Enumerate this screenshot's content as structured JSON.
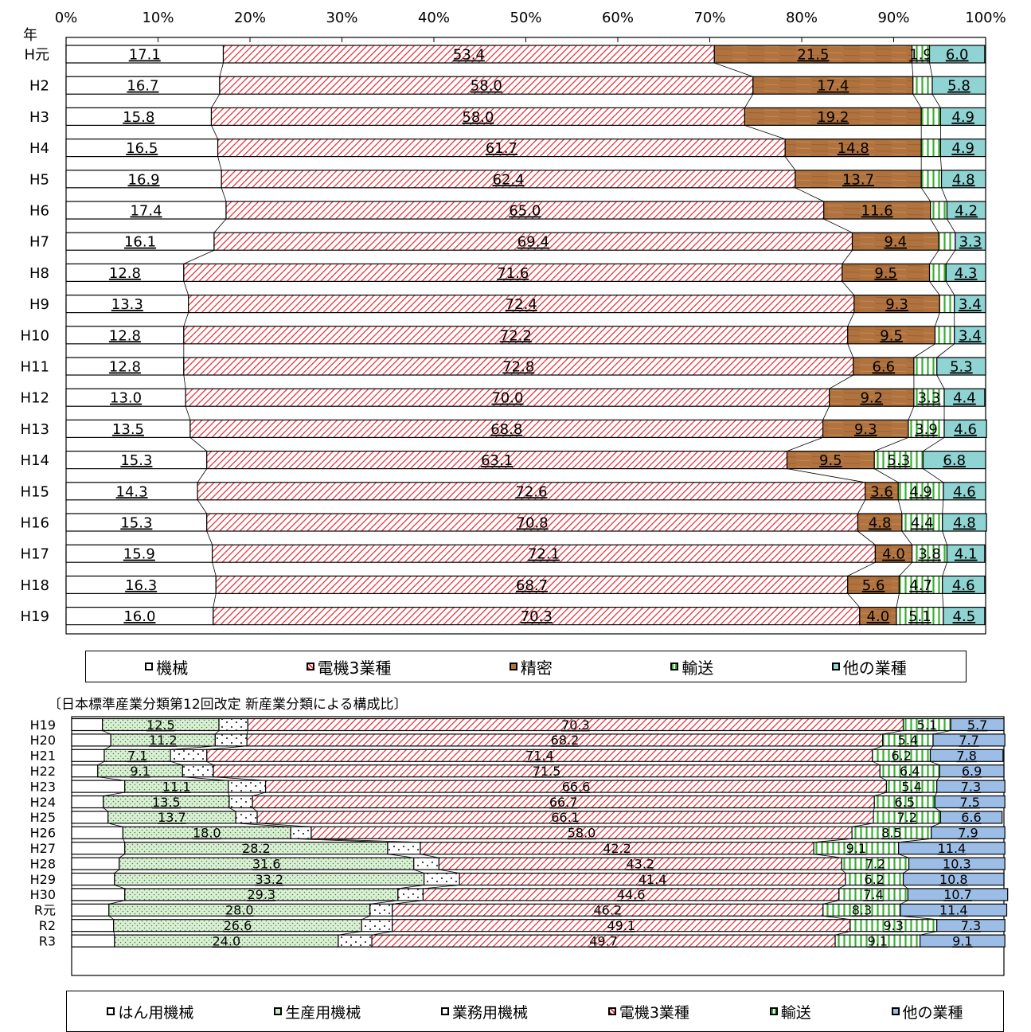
{
  "colors": {
    "machinery": "#ffffff",
    "electrical": "#e8252d",
    "precision": "#b0733f",
    "transport": "#35b030",
    "other_top": "#8fd3d3",
    "general": "#ffffff",
    "production": "#cfe9c7",
    "business": "#ffffff",
    "other_bottom": "#9bbde6"
  },
  "chart_data": [
    {
      "type": "bar",
      "orientation": "horizontal-stacked-100",
      "y_axis_title": "年",
      "xlim": [
        0,
        100
      ],
      "x_ticks": [
        "0%",
        "10%",
        "20%",
        "30%",
        "40%",
        "50%",
        "60%",
        "70%",
        "80%",
        "90%",
        "100%"
      ],
      "categories": [
        "H元",
        "H2",
        "H3",
        "H4",
        "H5",
        "H6",
        "H7",
        "H8",
        "H9",
        "H10",
        "H11",
        "H12",
        "H13",
        "H14",
        "H15",
        "H16",
        "H17",
        "H18",
        "H19"
      ],
      "series": [
        {
          "name": "機械",
          "values": [
            17.1,
            16.7,
            15.8,
            16.5,
            16.9,
            17.4,
            16.1,
            12.8,
            13.3,
            12.8,
            12.8,
            13.0,
            13.5,
            15.3,
            14.3,
            15.3,
            15.9,
            16.3,
            16.0
          ]
        },
        {
          "name": "電機3業種",
          "values": [
            53.4,
            58.0,
            58.0,
            61.7,
            62.4,
            65.0,
            69.4,
            71.6,
            72.4,
            72.2,
            72.8,
            70.0,
            68.8,
            63.1,
            72.6,
            70.8,
            72.1,
            68.7,
            70.3
          ]
        },
        {
          "name": "精密",
          "values": [
            21.5,
            17.4,
            19.2,
            14.8,
            13.7,
            11.6,
            9.4,
            9.5,
            9.3,
            9.5,
            6.6,
            9.2,
            9.3,
            9.5,
            3.6,
            4.8,
            4.0,
            5.6,
            4.0
          ]
        },
        {
          "name": "輸送",
          "values": [
            1.9,
            2.1,
            2.1,
            2.1,
            2.2,
            1.8,
            1.8,
            1.8,
            1.6,
            2.1,
            2.5,
            3.3,
            3.9,
            5.3,
            4.9,
            4.4,
            3.8,
            4.7,
            5.1
          ]
        },
        {
          "name": "他の業種",
          "values": [
            6.0,
            5.8,
            4.9,
            4.9,
            4.8,
            4.2,
            3.3,
            4.3,
            3.4,
            3.4,
            5.3,
            4.4,
            4.6,
            6.8,
            4.6,
            4.8,
            4.1,
            4.6,
            4.5
          ]
        }
      ],
      "data_labels": {
        "機械": [
          "17.1",
          "16.7",
          "15.8",
          "16.5",
          "16.9",
          "17.4",
          "16.1",
          "12.8",
          "13.3",
          "12.8",
          "12.8",
          "13.0",
          "13.5",
          "15.3",
          "14.3",
          "15.3",
          "15.9",
          "16.3",
          "16.0"
        ],
        "電機3業種": [
          "53.4",
          "58.0",
          "58.0",
          "61.7",
          "62.4",
          "65.0",
          "69.4",
          "71.6",
          "72.4",
          "72.2",
          "72.8",
          "70.0",
          "68.8",
          "63.1",
          "72.6",
          "70.8",
          "72.1",
          "68.7",
          "70.3"
        ],
        "精密": [
          "21.5",
          "17.4",
          "19.2",
          "14.8",
          "13.7",
          "11.6",
          "9.4",
          "9.5",
          "9.3",
          "9.5",
          "6.6",
          "9.2",
          "9.3",
          "9.5",
          "3.6",
          "4.8",
          "4.0",
          "5.6",
          "4.0"
        ],
        "輸送": [
          "1.9",
          "",
          "",
          "",
          "",
          "",
          "",
          "",
          "",
          "",
          "",
          "3.3",
          "3.9",
          "5.3",
          "4.9",
          "4.4",
          "3.8",
          "4.7",
          "5.1"
        ],
        "他の業種": [
          "6.0",
          "5.8",
          "4.9",
          "4.9",
          "4.8",
          "4.2",
          "3.3",
          "4.3",
          "3.4",
          "3.4",
          "5.3",
          "4.4",
          "4.6",
          "6.8",
          "4.6",
          "4.8",
          "4.1",
          "4.6",
          "4.5"
        ]
      },
      "legend_position": "bottom",
      "grid": false
    },
    {
      "type": "bar",
      "orientation": "horizontal-stacked-100",
      "title": "〔日本標準産業分類第12回改定 新産業分類による構成比〕",
      "xlim": [
        0,
        100
      ],
      "categories": [
        "H19",
        "H20",
        "H21",
        "H22",
        "H23",
        "H24",
        "H25",
        "H26",
        "H27",
        "H28",
        "H29",
        "H30",
        "R元",
        "R2",
        "R3"
      ],
      "series": [
        {
          "name": "はん用機械",
          "values": [
            3.3,
            4.2,
            3.5,
            2.8,
            5.7,
            3.4,
            3.9,
            5.5,
            5.7,
            5.1,
            4.6,
            5.7,
            4.0,
            4.5,
            4.6
          ]
        },
        {
          "name": "生産用機械",
          "values": [
            12.5,
            11.2,
            7.1,
            9.1,
            11.1,
            13.5,
            13.7,
            18.0,
            28.2,
            31.6,
            33.2,
            29.3,
            28.0,
            26.6,
            24.0
          ]
        },
        {
          "name": "業務用機械",
          "values": [
            3.1,
            3.4,
            3.9,
            3.3,
            4.0,
            2.5,
            2.3,
            2.2,
            3.5,
            2.7,
            3.8,
            2.7,
            2.4,
            3.3,
            3.6
          ]
        },
        {
          "name": "電機3業種",
          "values": [
            70.3,
            68.2,
            71.4,
            71.5,
            66.6,
            66.7,
            66.1,
            58.0,
            42.2,
            43.2,
            41.4,
            44.6,
            46.2,
            49.1,
            49.7
          ]
        },
        {
          "name": "輸送",
          "values": [
            5.1,
            5.4,
            6.2,
            6.4,
            5.4,
            6.5,
            7.2,
            8.5,
            9.1,
            7.2,
            6.2,
            7.4,
            8.3,
            9.3,
            9.1
          ]
        },
        {
          "name": "他の業種",
          "values": [
            5.7,
            7.7,
            7.8,
            6.9,
            7.3,
            7.5,
            6.6,
            7.9,
            11.4,
            10.3,
            10.8,
            10.7,
            11.4,
            7.3,
            9.1
          ]
        }
      ],
      "data_labels": {
        "生産用機械": [
          "12.5",
          "11.2",
          "7.1",
          "9.1",
          "11.1",
          "13.5",
          "13.7",
          "18.0",
          "28.2",
          "31.6",
          "33.2",
          "29.3",
          "28.0",
          "26.6",
          "24.0"
        ],
        "電機3業種": [
          "70.3",
          "68.2",
          "71.4",
          "71.5",
          "66.6",
          "66.7",
          "66.1",
          "58.0",
          "42.2",
          "43.2",
          "41.4",
          "44.6",
          "46.2",
          "49.1",
          "49.7"
        ],
        "輸送": [
          "5.1",
          "5.4",
          "6.2",
          "6.4",
          "5.4",
          "6.5",
          "7.2",
          "8.5",
          "9.1",
          "7.2",
          "6.2",
          "7.4",
          "8.3",
          "9.3",
          "9.1"
        ],
        "他の業種": [
          "5.7",
          "7.7",
          "7.8",
          "6.9",
          "7.3",
          "7.5",
          "6.6",
          "7.9",
          "11.4",
          "10.3",
          "10.8",
          "10.7",
          "11.4",
          "7.3",
          "9.1"
        ]
      },
      "legend_position": "bottom",
      "grid": false
    }
  ]
}
